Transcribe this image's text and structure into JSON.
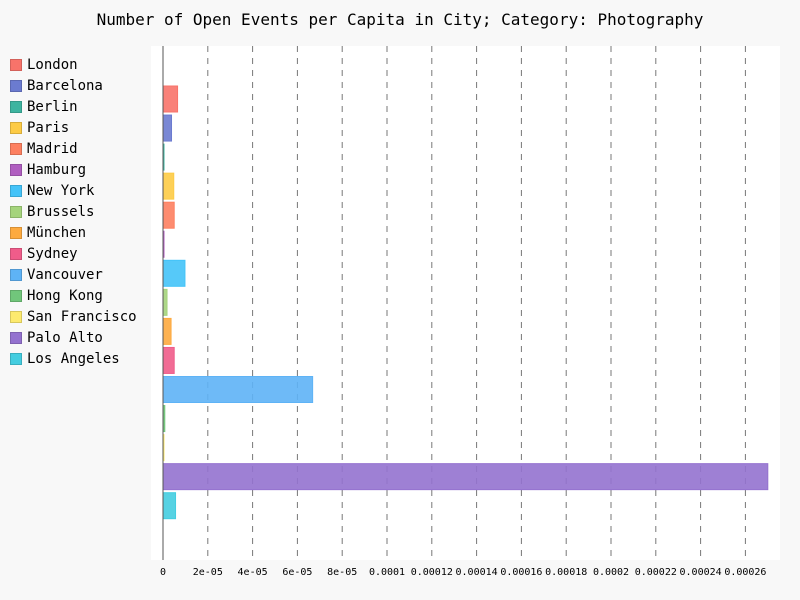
{
  "chart_data": {
    "type": "bar",
    "orientation": "horizontal",
    "title": "Number of Open Events per Capita in City; Category: Photography",
    "xlabel": "",
    "ylabel": "",
    "xlim": [
      0,
      0.000276
    ],
    "grid": "x-dashed",
    "legend_position": "left",
    "x_tick_labels": [
      "0",
      "2e-05",
      "4e-05",
      "6e-05",
      "8e-05",
      "0.0001",
      "0.00012",
      "0.00014",
      "0.00016",
      "0.00018",
      "0.0002",
      "0.00022",
      "0.00024",
      "0.00026"
    ],
    "x_tick_values": [
      0,
      2e-05,
      4e-05,
      6e-05,
      8e-05,
      0.0001,
      0.00012,
      0.00014,
      0.00016,
      0.00018,
      0.0002,
      0.00022,
      0.00024,
      0.00026
    ],
    "series": [
      {
        "name": "London",
        "value": 6.5e-06,
        "color": "#f8736a"
      },
      {
        "name": "Barcelona",
        "value": 3.8e-06,
        "color": "#6b7bd0"
      },
      {
        "name": "Berlin",
        "value": 4e-07,
        "color": "#3eb4a0"
      },
      {
        "name": "Paris",
        "value": 4.8e-06,
        "color": "#fdcb45"
      },
      {
        "name": "Madrid",
        "value": 5e-06,
        "color": "#fd8060"
      },
      {
        "name": "Hamburg",
        "value": 2e-07,
        "color": "#b05ec0"
      },
      {
        "name": "New York",
        "value": 9.8e-06,
        "color": "#44c3f8"
      },
      {
        "name": "Brussels",
        "value": 1.8e-06,
        "color": "#a5d47c"
      },
      {
        "name": "München",
        "value": 3.6e-06,
        "color": "#fdaa3f"
      },
      {
        "name": "Sydney",
        "value": 5e-06,
        "color": "#f05c8a"
      },
      {
        "name": "Vancouver",
        "value": 6.68e-05,
        "color": "#5eb3f6"
      },
      {
        "name": "Hong Kong",
        "value": 8e-07,
        "color": "#71c67b"
      },
      {
        "name": "San Francisco",
        "value": 2e-07,
        "color": "#fdea6e"
      },
      {
        "name": "Palo Alto",
        "value": 0.00027,
        "color": "#9472cf"
      },
      {
        "name": "Los Angeles",
        "value": 5.6e-06,
        "color": "#44cde0"
      }
    ]
  }
}
